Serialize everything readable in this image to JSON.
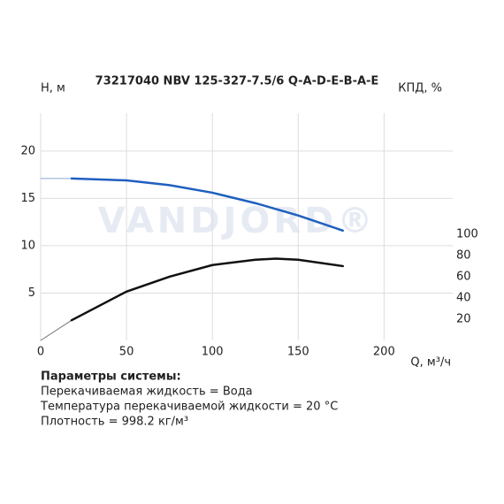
{
  "chart_data": {
    "type": "line",
    "title": "73217040 NBV 125-327-7.5/6 Q-A-D-E-B-A-E",
    "watermark": "VANDJORD®",
    "x_label": "Q, м³/ч",
    "y_label": "Н, м",
    "y2_label": "КПД, %",
    "xlim": [
      0,
      240
    ],
    "ylim": [
      0,
      24
    ],
    "y2lim": [
      0,
      214
    ],
    "xticks": [
      0,
      50,
      100,
      150,
      200
    ],
    "yticks": [
      5,
      10,
      15,
      20
    ],
    "y2ticks": [
      20,
      40,
      60,
      80,
      100
    ],
    "grid": true,
    "series": [
      {
        "color": "#8aa8d8",
        "width": 1,
        "x": [
          0,
          18
        ],
        "values": [
          17.1,
          17.1
        ]
      },
      {
        "color": "#1f5fbf",
        "width": 2.5,
        "x": [
          18,
          50,
          75,
          100,
          125,
          150,
          176
        ],
        "values": [
          17.1,
          16.9,
          16.4,
          15.6,
          14.5,
          13.2,
          11.6
        ]
      },
      {
        "color": "#777777",
        "width": 1,
        "axis": "y2",
        "x": [
          0,
          18
        ],
        "values": [
          0,
          19
        ]
      },
      {
        "color": "#111111",
        "width": 2.5,
        "axis": "y2",
        "x": [
          18,
          50,
          75,
          100,
          125,
          137,
          150,
          176
        ],
        "values": [
          19,
          46,
          60,
          71,
          76,
          77,
          76,
          70
        ]
      }
    ]
  },
  "info": {
    "heading": "Параметры системы:",
    "lines": [
      "Перекачиваемая жидкость = Вода",
      "Температура перекачиваемой жидкости = 20 °C",
      "Плотность = 998.2 кг/м³"
    ]
  }
}
